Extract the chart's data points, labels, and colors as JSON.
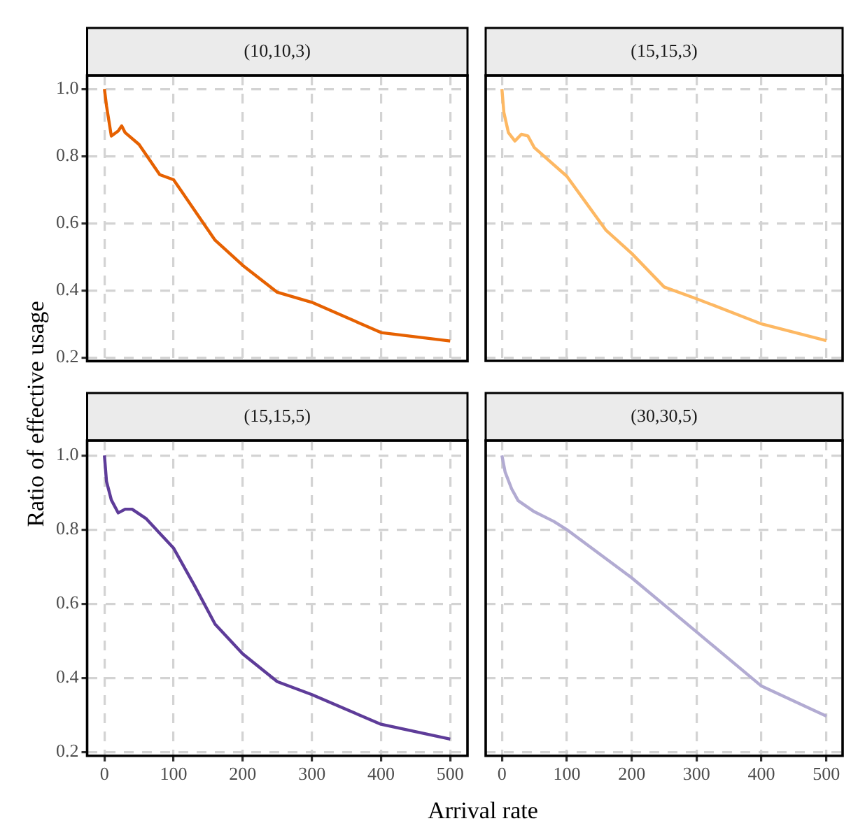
{
  "chart_data": [
    {
      "type": "line",
      "title": "(10,10,3)",
      "ylabel": "Ratio of effective usage",
      "xlim": [
        -25,
        525
      ],
      "xticks": [
        0,
        100,
        200,
        300,
        400,
        500
      ],
      "ylim": [
        0.19,
        1.04
      ],
      "yticks": [
        0.2,
        0.4,
        0.6,
        0.8,
        {
          "value": 1,
          "label": "1.0"
        }
      ],
      "grid": true,
      "marker": "none",
      "tick_labels": "y",
      "series": [
        {
          "color": "#e66101",
          "x": [
            0,
            3,
            10,
            20,
            25,
            30,
            50,
            80,
            100,
            130,
            160,
            200,
            250,
            300,
            400,
            500
          ],
          "values": [
            1.0,
            0.95,
            0.86,
            0.875,
            0.89,
            0.87,
            0.835,
            0.745,
            0.73,
            0.64,
            0.55,
            0.475,
            0.395,
            0.365,
            0.275,
            0.25
          ]
        }
      ]
    },
    {
      "type": "line",
      "title": "(15,15,3)",
      "xlim": [
        -25,
        525
      ],
      "xticks": [
        0,
        100,
        200,
        300,
        400,
        500
      ],
      "ylim": [
        0.19,
        1.04
      ],
      "yticks": [
        0.2,
        0.4,
        0.6,
        0.8,
        1
      ],
      "grid": true,
      "marker": "none",
      "tick_labels": false,
      "series": [
        {
          "color": "#fdb863",
          "x": [
            0,
            3,
            10,
            20,
            30,
            40,
            50,
            100,
            130,
            160,
            200,
            250,
            300,
            400,
            500
          ],
          "values": [
            1.0,
            0.93,
            0.87,
            0.845,
            0.865,
            0.86,
            0.825,
            0.74,
            0.66,
            0.58,
            0.51,
            0.41,
            0.375,
            0.3,
            0.25
          ]
        }
      ]
    },
    {
      "type": "line",
      "title": "(15,15,5)",
      "xlabel": "Arrival rate",
      "xlim": [
        -25,
        525
      ],
      "xticks": [
        0,
        100,
        200,
        300,
        400,
        500
      ],
      "ylim": [
        0.19,
        1.04
      ],
      "yticks": [
        0.2,
        0.4,
        0.6,
        0.8,
        {
          "value": 1,
          "label": "1.0"
        }
      ],
      "grid": true,
      "marker": "none",
      "series": [
        {
          "color": "#5e3c99",
          "x": [
            0,
            3,
            10,
            20,
            30,
            40,
            60,
            100,
            130,
            160,
            200,
            250,
            300,
            400,
            500
          ],
          "values": [
            1.0,
            0.93,
            0.88,
            0.845,
            0.855,
            0.855,
            0.83,
            0.75,
            0.65,
            0.545,
            0.465,
            0.39,
            0.355,
            0.275,
            0.235
          ]
        }
      ]
    },
    {
      "type": "line",
      "title": "(30,30,5)",
      "xlim": [
        -25,
        525
      ],
      "xticks": [
        0,
        100,
        200,
        300,
        400,
        500
      ],
      "ylim": [
        0.19,
        1.04
      ],
      "yticks": [
        0.2,
        0.4,
        0.6,
        0.8,
        1
      ],
      "grid": true,
      "marker": "none",
      "tick_labels": "x",
      "series": [
        {
          "color": "#b2abd2",
          "x": [
            0,
            5,
            15,
            25,
            50,
            80,
            100,
            200,
            300,
            400,
            500
          ],
          "values": [
            1.0,
            0.955,
            0.91,
            0.878,
            0.848,
            0.822,
            0.8,
            0.67,
            0.524,
            0.378,
            0.297
          ]
        }
      ]
    }
  ]
}
